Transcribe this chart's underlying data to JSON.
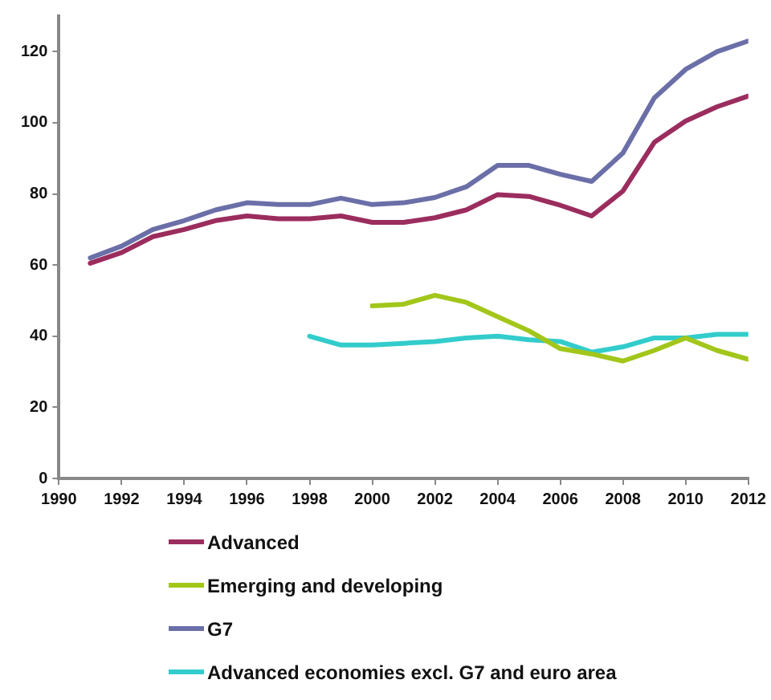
{
  "chart_data": {
    "type": "line",
    "x": [
      1991,
      1992,
      1993,
      1994,
      1995,
      1996,
      1997,
      1998,
      1999,
      2000,
      2001,
      2002,
      2003,
      2004,
      2005,
      2006,
      2007,
      2008,
      2009,
      2010,
      2011,
      2012
    ],
    "series": [
      {
        "name": "Advanced",
        "color": "#9b2d5e",
        "values": [
          60.5,
          63.5,
          68,
          70,
          72.5,
          73.8,
          73,
          73,
          73.8,
          72,
          72,
          73.3,
          75.5,
          79.8,
          79.3,
          76.8,
          73.8,
          80.8,
          94.5,
          100.5,
          104.5,
          107.5
        ]
      },
      {
        "name": "Emerging and developing",
        "color": "#a2c61a",
        "values": [
          null,
          null,
          null,
          null,
          null,
          null,
          null,
          null,
          null,
          48.5,
          49,
          51.5,
          49.5,
          45.5,
          41.5,
          36.5,
          35,
          33,
          36,
          39.5,
          36,
          33.5
        ]
      },
      {
        "name": "G7",
        "color": "#6b6fa8",
        "values": [
          62,
          65.3,
          70,
          72.5,
          75.5,
          77.5,
          77,
          77,
          78.8,
          77,
          77.5,
          79,
          82,
          88,
          88,
          85.5,
          83.5,
          91.5,
          107,
          115,
          120,
          123
        ]
      },
      {
        "name": "Advanced economies excl. G7 and euro area",
        "color": "#33cccc",
        "values": [
          null,
          null,
          null,
          null,
          null,
          null,
          null,
          40,
          37.5,
          37.5,
          38,
          38.5,
          39.5,
          40,
          39,
          38.5,
          35.5,
          37,
          39.5,
          39.5,
          40.5,
          40.5
        ]
      }
    ],
    "xlim": [
      1990,
      2012
    ],
    "xticks": [
      1990,
      1992,
      1994,
      1996,
      1998,
      2000,
      2002,
      2004,
      2006,
      2008,
      2010,
      2012
    ],
    "ylim": [
      0,
      130
    ],
    "yticks": [
      0,
      20,
      40,
      60,
      80,
      100,
      120
    ],
    "grid": false,
    "legend": "bottom",
    "marker": "none",
    "line_style": "solid"
  }
}
